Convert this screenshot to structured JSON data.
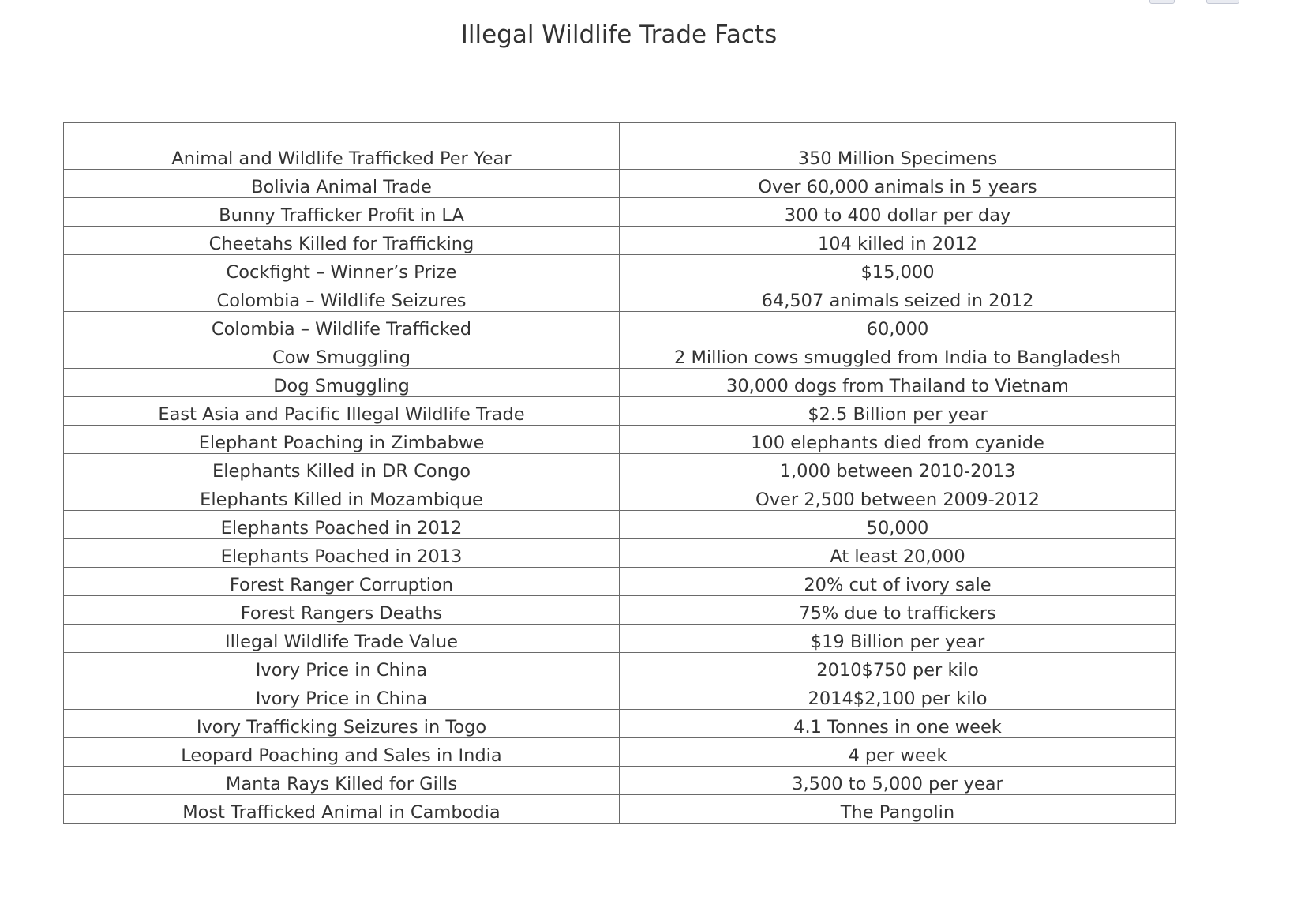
{
  "title": "Illegal Wildlife Trade Facts",
  "table": {
    "header": [
      "",
      ""
    ],
    "rows": [
      {
        "fact": "Animal and Wildlife Trafficked Per Year",
        "value": "350 Million Specimens"
      },
      {
        "fact": "Bolivia Animal Trade",
        "value": "Over 60,000 animals in 5 years"
      },
      {
        "fact": "Bunny Trafficker Profit in LA",
        "value": "300 to 400 dollar per day"
      },
      {
        "fact": "Cheetahs Killed for Trafficking",
        "value": "104 killed in 2012"
      },
      {
        "fact": "Cockfight – Winner’s Prize",
        "value": "$15,000"
      },
      {
        "fact": "Colombia – Wildlife Seizures",
        "value": "64,507 animals seized in 2012"
      },
      {
        "fact": "Colombia – Wildlife Trafficked",
        "value": "60,000"
      },
      {
        "fact": "Cow Smuggling",
        "value": "2 Million cows smuggled from India to Bangladesh"
      },
      {
        "fact": "Dog Smuggling",
        "value": "30,000 dogs from Thailand to Vietnam"
      },
      {
        "fact": "East Asia and Pacific Illegal Wildlife Trade",
        "value": "$2.5 Billion per year"
      },
      {
        "fact": "Elephant Poaching in Zimbabwe",
        "value": "100 elephants died from cyanide"
      },
      {
        "fact": "Elephants Killed in DR Congo",
        "value": "1,000 between 2010-2013"
      },
      {
        "fact": "Elephants Killed in Mozambique",
        "value": "Over 2,500 between 2009-2012"
      },
      {
        "fact": "Elephants Poached in 2012",
        "value": "50,000"
      },
      {
        "fact": "Elephants Poached in 2013",
        "value": "At least 20,000"
      },
      {
        "fact": "Forest Ranger Corruption",
        "value": "20% cut of ivory sale"
      },
      {
        "fact": "Forest Rangers Deaths",
        "value": "75% due to traffickers"
      },
      {
        "fact": "Illegal Wildlife Trade Value",
        "value": "$19 Billion per year"
      },
      {
        "fact": "Ivory Price in China",
        "value": "2010$750 per kilo"
      },
      {
        "fact": "Ivory Price in China",
        "value": "2014$2,100 per kilo"
      },
      {
        "fact": "Ivory Trafficking Seizures in Togo",
        "value": "4.1 Tonnes in one week"
      },
      {
        "fact": "Leopard Poaching and Sales in India",
        "value": "4 per week"
      },
      {
        "fact": "Manta Rays Killed for Gills",
        "value": "3,500 to 5,000 per year"
      },
      {
        "fact": "Most Trafficked Animal in Cambodia",
        "value": "The Pangolin"
      }
    ]
  }
}
